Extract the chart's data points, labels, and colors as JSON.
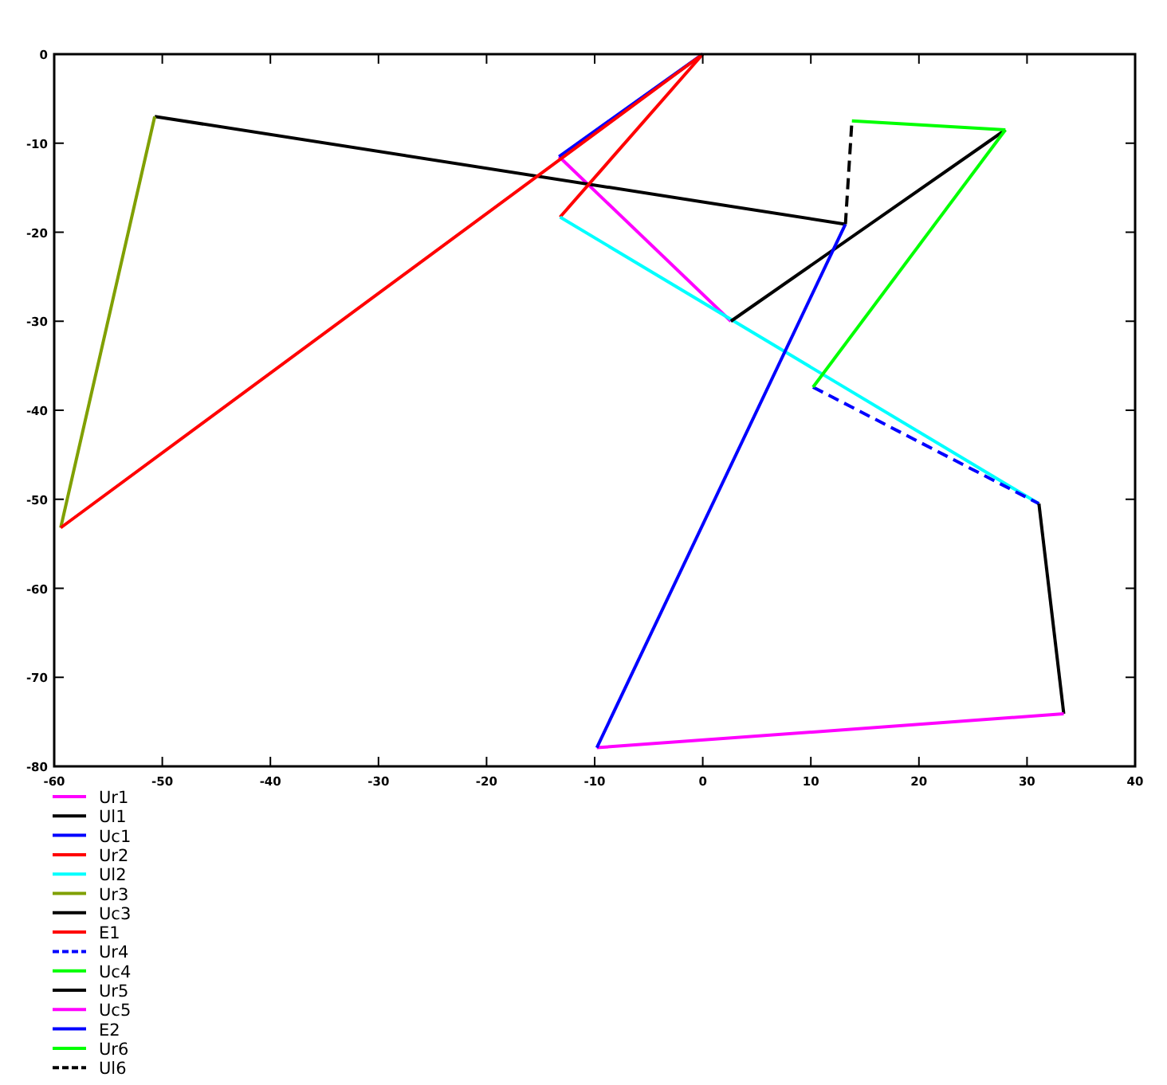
{
  "chart_data": {
    "type": "line",
    "xlim": [
      -60,
      40
    ],
    "ylim": [
      -80,
      0
    ],
    "xticks": [
      -60,
      -50,
      -40,
      -30,
      -20,
      -10,
      0,
      10,
      20,
      30,
      40
    ],
    "yticks": [
      0,
      -10,
      -20,
      -30,
      -40,
      -50,
      -60,
      -70,
      -80
    ],
    "legend": "bottom left",
    "series": [
      {
        "name": "Ur1",
        "color": "#ff00ff",
        "x": [
          -13.3,
          2.6
        ],
        "values": [
          -11.5,
          -30.0
        ]
      },
      {
        "name": "Ul1",
        "color": "#000000",
        "x": [
          -50.7,
          13.2
        ],
        "values": [
          -7.0,
          -19.1
        ]
      },
      {
        "name": "Uc1",
        "color": "#0000ff",
        "x": [
          0,
          -13.3
        ],
        "values": [
          0,
          -11.5
        ]
      },
      {
        "name": "Ur2",
        "color": "#ff0000",
        "x": [
          0,
          -13.2
        ],
        "values": [
          0,
          -18.3
        ]
      },
      {
        "name": "Ul2",
        "color": "#00ffff",
        "x": [
          -13.2,
          31.1
        ],
        "values": [
          -18.3,
          -50.5
        ]
      },
      {
        "name": "Ur3",
        "color": "#80a000",
        "x": [
          -59.4,
          -50.7
        ],
        "values": [
          -53.2,
          -7.0
        ]
      },
      {
        "name": "Uc3",
        "color": "#000000",
        "x": [
          2.6,
          28.0
        ],
        "values": [
          -30.0,
          -8.5
        ]
      },
      {
        "name": "E1",
        "color": "#ff0000",
        "x": [
          0,
          -59.4
        ],
        "values": [
          0,
          -53.2
        ]
      },
      {
        "name": "Ur4",
        "color": "#0000ff",
        "line_style": "dashed",
        "x": [
          10.2,
          31.1
        ],
        "values": [
          -37.4,
          -50.5
        ]
      },
      {
        "name": "Uc4",
        "color": "#00ff00",
        "x": [
          10.2,
          28.0
        ],
        "values": [
          -37.4,
          -8.5
        ]
      },
      {
        "name": "Ur5",
        "color": "#000000",
        "x": [
          31.1,
          33.4
        ],
        "values": [
          -50.5,
          -74.1
        ]
      },
      {
        "name": "Uc5",
        "color": "#ff00ff",
        "x": [
          33.4,
          -9.8
        ],
        "values": [
          -74.1,
          -77.9
        ]
      },
      {
        "name": "E2",
        "color": "#0000ff",
        "x": [
          -9.8,
          13.2
        ],
        "values": [
          -77.9,
          -19.1
        ]
      },
      {
        "name": "Ur6",
        "color": "#00ff00",
        "x": [
          13.8,
          28.0
        ],
        "values": [
          -7.5,
          -8.5
        ]
      },
      {
        "name": "Ul6",
        "color": "#000000",
        "line_style": "dashed",
        "x": [
          13.2,
          13.8
        ],
        "values": [
          -19.1,
          -7.5
        ]
      }
    ]
  }
}
